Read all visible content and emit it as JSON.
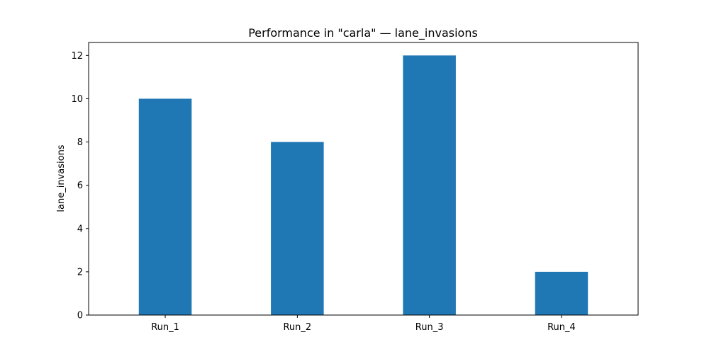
{
  "chart_data": {
    "type": "bar",
    "title": "Performance in \"carla\" — lane_invasions",
    "xlabel": "",
    "ylabel": "lane_invasions",
    "categories": [
      "Run_1",
      "Run_2",
      "Run_3",
      "Run_4"
    ],
    "values": [
      10,
      8,
      12,
      2
    ],
    "ylim": [
      0,
      12.6
    ],
    "yticks": [
      0,
      2,
      4,
      6,
      8,
      10,
      12
    ],
    "grid": false,
    "legend": "none",
    "colors": {
      "bar": "#1f77b4",
      "axes": "#000000",
      "background": "#ffffff"
    }
  }
}
